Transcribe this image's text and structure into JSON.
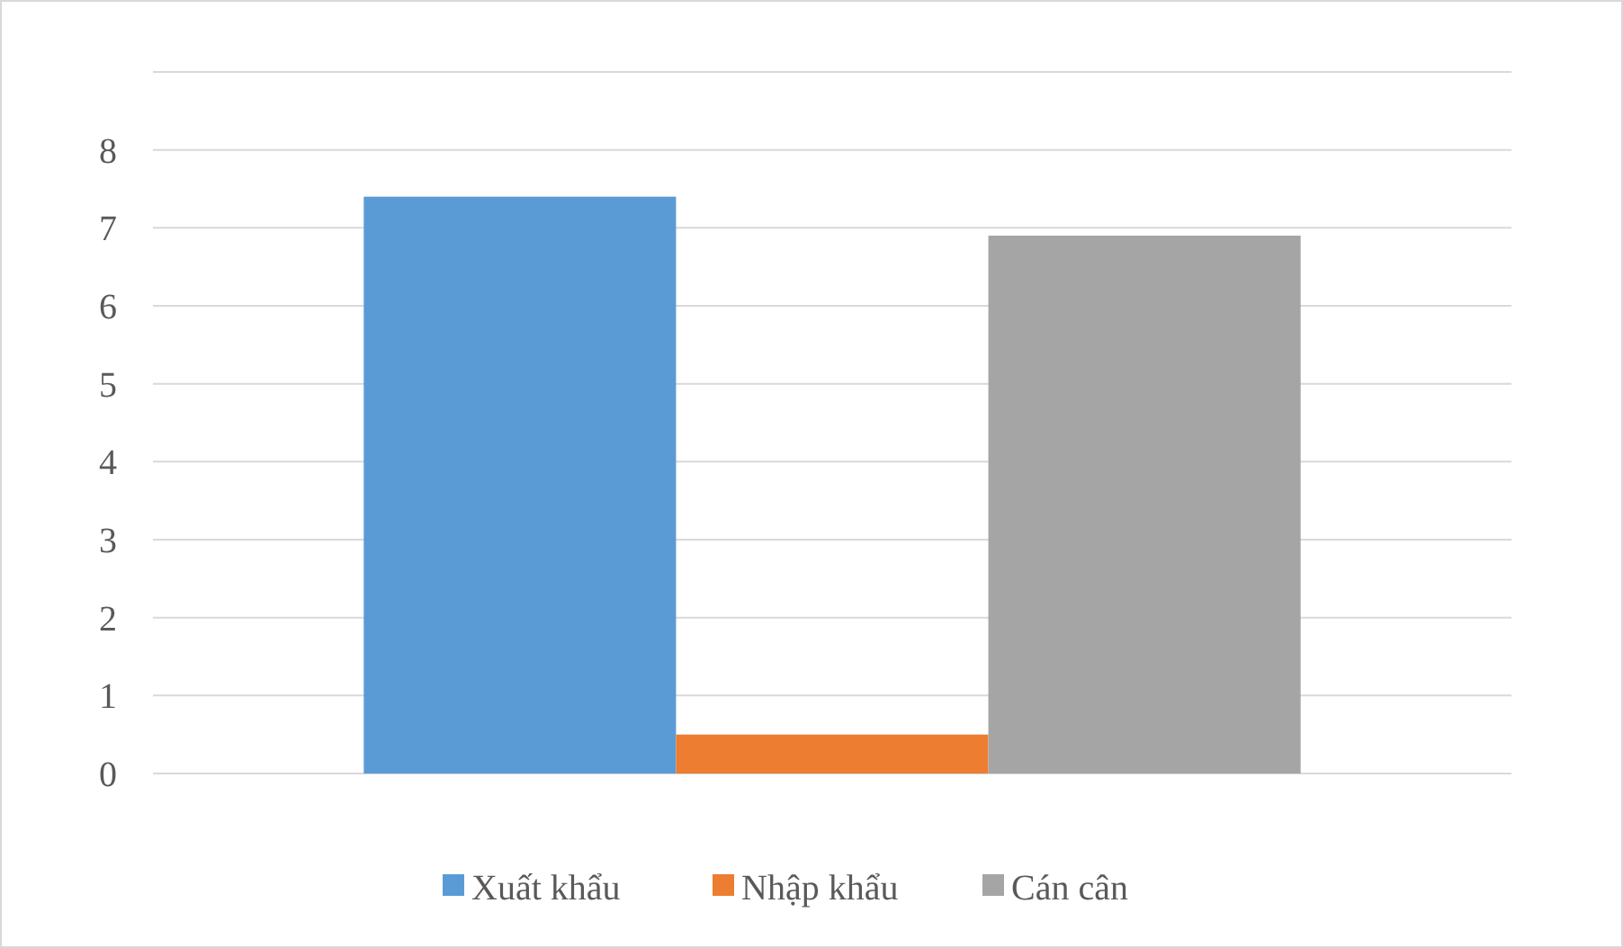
{
  "chart_data": {
    "type": "bar",
    "categories": [
      null
    ],
    "series": [
      {
        "name": "Xuất khẩu",
        "color": "#5b9bd5",
        "values": [
          7.4
        ]
      },
      {
        "name": "Nhập khẩu",
        "color": "#ed7d31",
        "values": [
          0.5
        ]
      },
      {
        "name": "Cán cân",
        "color": "#a5a5a5",
        "values": [
          6.9
        ]
      }
    ],
    "ylim": [
      0,
      9
    ],
    "yticks": [
      0,
      1,
      2,
      3,
      4,
      5,
      6,
      7,
      8,
      {
        "value": 9,
        "label": null
      }
    ],
    "grid": "y",
    "legend": "bottom"
  }
}
